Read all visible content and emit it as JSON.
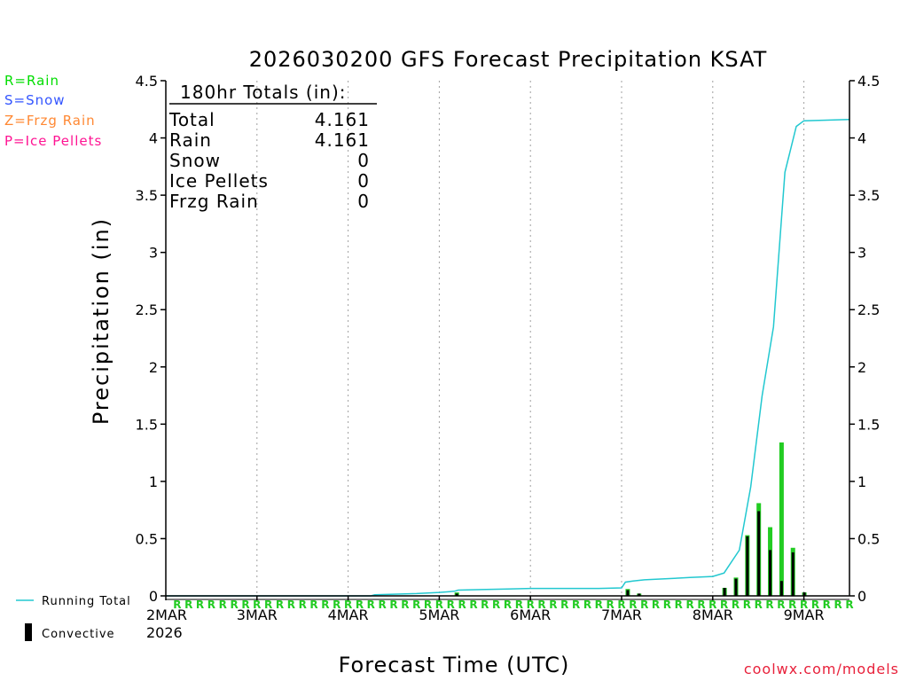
{
  "chart_data": {
    "type": "bar+line",
    "title": "2026030200 GFS Forecast Precipitation KSAT",
    "ylabel": "Precipitation (in)",
    "xlabel": "Forecast Time (UTC)",
    "ylim": [
      0,
      4.5
    ],
    "xlim_hours": [
      0,
      180
    ],
    "y_ticks": [
      "0",
      "0.5",
      "1",
      "1.5",
      "2",
      "2.5",
      "3",
      "3.5",
      "4",
      "4.5"
    ],
    "y_tick_values": [
      0,
      0.5,
      1,
      1.5,
      2,
      2.5,
      3,
      3.5,
      4,
      4.5
    ],
    "x_ticks": [
      {
        "label": "2MAR",
        "hour": 0
      },
      {
        "label": "3MAR",
        "hour": 24
      },
      {
        "label": "4MAR",
        "hour": 48
      },
      {
        "label": "5MAR",
        "hour": 72
      },
      {
        "label": "6MAR",
        "hour": 96
      },
      {
        "label": "7MAR",
        "hour": 120
      },
      {
        "label": "8MAR",
        "hour": 144
      },
      {
        "label": "9MAR",
        "hour": 168
      }
    ],
    "year_label": "2026",
    "totals_box": {
      "header": "180hr Totals (in):",
      "rows": [
        {
          "label": "Total",
          "value": "4.161"
        },
        {
          "label": "Rain",
          "value": "4.161"
        },
        {
          "label": "Snow",
          "value": "0"
        },
        {
          "label": "Ice Pellets",
          "value": "0"
        },
        {
          "label": "Frzg Rain",
          "value": "0"
        }
      ]
    },
    "precip_type_legend": [
      {
        "label": "R=Rain",
        "color": "#00dd00"
      },
      {
        "label": "S=Snow",
        "color": "#3355ff"
      },
      {
        "label": "Z=Frzg Rain",
        "color": "#ff8833"
      },
      {
        "label": "P=Ice Pellets",
        "color": "#ff1493"
      }
    ],
    "series_legend": {
      "running_total": {
        "label": "Running Total",
        "color": "#22c8d0"
      },
      "convective": {
        "label": "Convective",
        "color": "#000000"
      }
    },
    "precip_type_marker": "R",
    "running_total": [
      [
        0,
        0.0
      ],
      [
        54,
        0.0
      ],
      [
        55,
        0.01
      ],
      [
        60,
        0.015
      ],
      [
        66,
        0.02
      ],
      [
        72,
        0.03
      ],
      [
        76,
        0.04
      ],
      [
        77,
        0.05
      ],
      [
        83,
        0.055
      ],
      [
        90,
        0.06
      ],
      [
        96,
        0.065
      ],
      [
        114,
        0.065
      ],
      [
        120,
        0.07
      ],
      [
        121,
        0.12
      ],
      [
        123,
        0.13
      ],
      [
        126,
        0.14
      ],
      [
        132,
        0.15
      ],
      [
        138,
        0.16
      ],
      [
        144,
        0.17
      ],
      [
        147,
        0.2
      ],
      [
        148,
        0.25
      ],
      [
        151,
        0.4
      ],
      [
        154,
        0.95
      ],
      [
        157,
        1.75
      ],
      [
        160,
        2.35
      ],
      [
        163,
        3.7
      ],
      [
        166,
        4.1
      ],
      [
        168,
        4.15
      ],
      [
        180,
        4.161
      ]
    ],
    "bars": [
      {
        "hour": 76.5,
        "total": 0.03,
        "convective": 0.02
      },
      {
        "hour": 121.5,
        "total": 0.06,
        "convective": 0.05
      },
      {
        "hour": 124.5,
        "total": 0.02,
        "convective": 0.02
      },
      {
        "hour": 147,
        "total": 0.07,
        "convective": 0.07
      },
      {
        "hour": 150,
        "total": 0.16,
        "convective": 0.15
      },
      {
        "hour": 153,
        "total": 0.53,
        "convective": 0.52
      },
      {
        "hour": 156,
        "total": 0.81,
        "convective": 0.74
      },
      {
        "hour": 159,
        "total": 0.6,
        "convective": 0.4
      },
      {
        "hour": 162,
        "total": 1.34,
        "convective": 0.13
      },
      {
        "hour": 165,
        "total": 0.42,
        "convective": 0.38
      },
      {
        "hour": 168,
        "total": 0.03,
        "convective": 0.03
      }
    ]
  },
  "credit": "coolwx.com/models"
}
